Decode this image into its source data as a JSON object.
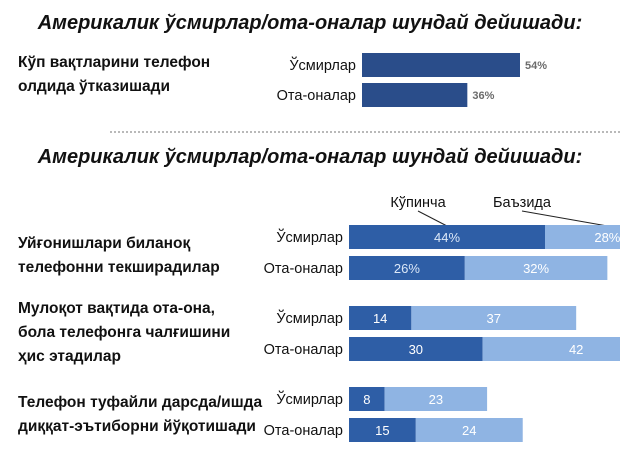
{
  "title_top": "Америкалик ўсмирлар/ота-оналар шундай дейишади:",
  "title_bottom": "Америкалик ўсмирлар/ота-оналар шундай дейишади:",
  "colors": {
    "dark": "#2a4d8a",
    "mid": "#2e5ea6",
    "light": "#8fb4e3"
  },
  "chart_data": [
    {
      "type": "bar",
      "title": "Америкалик ўсмирлар/ота-оналар шундай дейишади:",
      "question": [
        "Кўп вақтларини телефон",
        "олдида ўтказишади"
      ],
      "categories": [
        "Ўсмирлар",
        "Ота-оналар"
      ],
      "values": [
        54,
        36
      ],
      "value_labels": [
        "54%",
        "36%"
      ]
    },
    {
      "type": "bar",
      "stacked": true,
      "title": "Америкалик ўсмирлар/ота-оналар шундай дейишади:",
      "legend": [
        "Кўпинча",
        "Баъзида"
      ],
      "groups": [
        {
          "question": [
            "Уйғонишлари биланоқ",
            "телефонни текширадилар"
          ],
          "rows": [
            {
              "label": "Ўсмирлар",
              "values": [
                44,
                28
              ],
              "labels": [
                "44%",
                "28%"
              ]
            },
            {
              "label": "Ота-оналар",
              "values": [
                26,
                32
              ],
              "labels": [
                "26%",
                "32%"
              ]
            }
          ]
        },
        {
          "question": [
            "Мулоқот вақтида ота-она,",
            "бола телефонга чалғишини",
            "ҳис этадилар"
          ],
          "rows": [
            {
              "label": "Ўсмирлар",
              "values": [
                14,
                37
              ],
              "labels": [
                "14",
                "37"
              ]
            },
            {
              "label": "Ота-оналар",
              "values": [
                30,
                42
              ],
              "labels": [
                "30",
                "42"
              ]
            }
          ]
        },
        {
          "question": [
            "Телефон туфайли дарсда/ишда",
            "диққат-эътиборни йўқотишади"
          ],
          "rows": [
            {
              "label": "Ўсмирлар",
              "values": [
                8,
                23
              ],
              "labels": [
                "8",
                "23"
              ]
            },
            {
              "label": "Ота-оналар",
              "values": [
                15,
                24
              ],
              "labels": [
                "15",
                "24"
              ]
            }
          ]
        }
      ]
    }
  ]
}
